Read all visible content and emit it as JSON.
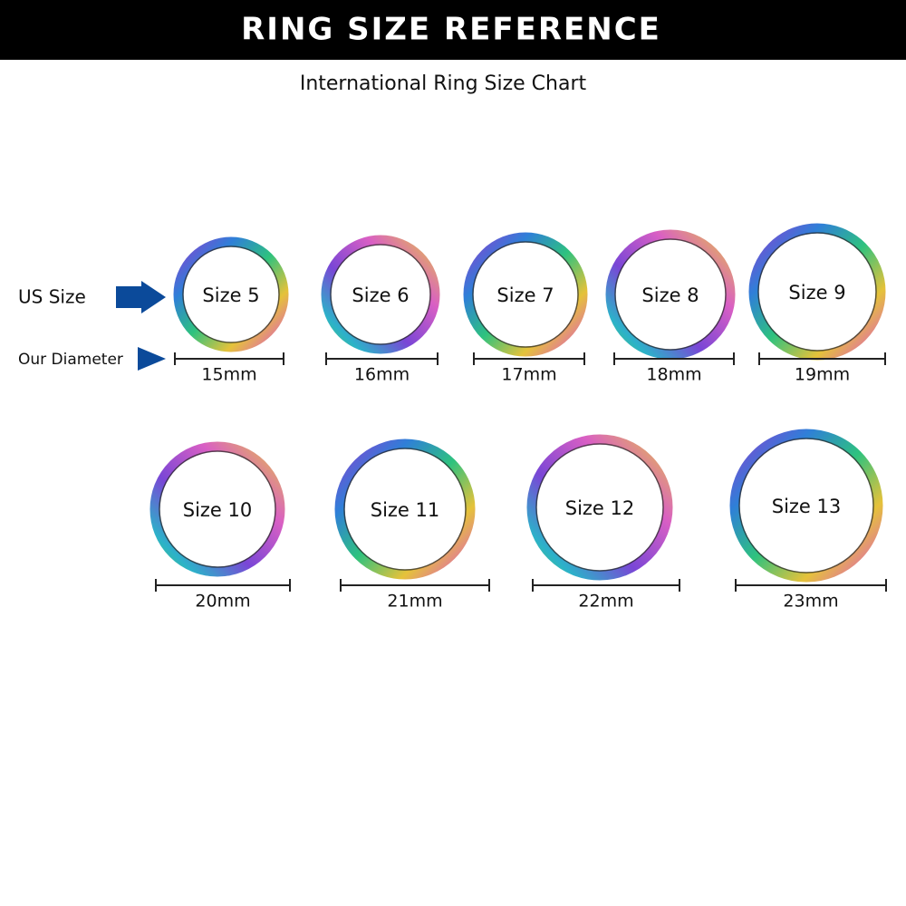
{
  "header": {
    "title": "RING SIZE REFERENCE"
  },
  "subtitle": "International Ring Size Chart",
  "labels": {
    "us_size": "US Size",
    "diameter": "Our Diameter"
  },
  "rings": [
    {
      "size": "Size 5",
      "diameter": "15mm"
    },
    {
      "size": "Size 6",
      "diameter": "16mm"
    },
    {
      "size": "Size 7",
      "diameter": "17mm"
    },
    {
      "size": "Size 8",
      "diameter": "18mm"
    },
    {
      "size": "Size 9",
      "diameter": "19mm"
    },
    {
      "size": "Size 10",
      "diameter": "20mm"
    },
    {
      "size": "Size 11",
      "diameter": "21mm"
    },
    {
      "size": "Size 12",
      "diameter": "22mm"
    },
    {
      "size": "Size 13",
      "diameter": "23mm"
    }
  ]
}
